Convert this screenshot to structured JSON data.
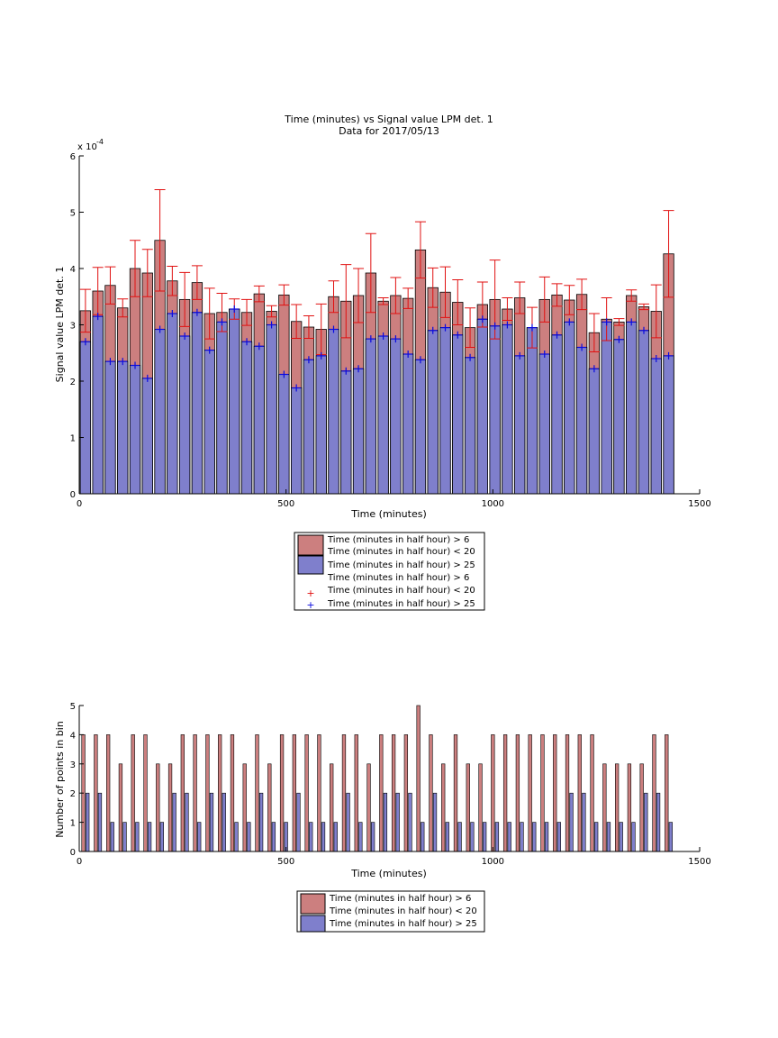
{
  "chart_data": [
    {
      "type": "bar",
      "title": "Time (minutes) vs Signal value LPM det. 1",
      "subtitle": "Data for 2017/05/13",
      "xlabel": "Time (minutes)",
      "ylabel": "Signal value LPM det. 1",
      "y_exponent_label": "x 10",
      "y_exponent_power": "-4",
      "xlim": [
        0,
        1500
      ],
      "ylim": [
        0,
        6
      ],
      "xticks": [
        "0",
        "500",
        "1000",
        "1500"
      ],
      "yticks": [
        "0",
        "1",
        "2",
        "3",
        "4",
        "5",
        "6"
      ],
      "bar_width": 25,
      "x": [
        15,
        45,
        75,
        105,
        135,
        165,
        195,
        225,
        255,
        285,
        315,
        345,
        375,
        405,
        435,
        465,
        495,
        525,
        555,
        585,
        615,
        645,
        675,
        705,
        735,
        765,
        795,
        825,
        855,
        885,
        915,
        945,
        975,
        1005,
        1035,
        1065,
        1095,
        1125,
        1155,
        1185,
        1215,
        1245,
        1275,
        1305,
        1335,
        1365,
        1395,
        1425
      ],
      "series": [
        {
          "name": "Time (minutes in half hour) > 6\nTime (minutes in half hour) < 20",
          "color": "#cc7f7f",
          "err_color": "#e01010",
          "values": [
            3.25,
            3.6,
            3.7,
            3.3,
            4.0,
            3.92,
            4.5,
            3.78,
            3.45,
            3.75,
            3.2,
            3.22,
            3.28,
            3.22,
            3.55,
            3.24,
            3.53,
            3.06,
            2.96,
            2.92,
            3.5,
            3.42,
            3.52,
            3.92,
            3.42,
            3.52,
            3.47,
            4.33,
            3.66,
            3.58,
            3.4,
            2.95,
            3.36,
            3.45,
            3.28,
            3.48,
            2.95,
            3.45,
            3.53,
            3.44,
            3.54,
            2.86,
            3.1,
            3.05,
            3.52,
            3.32,
            3.24,
            4.26
          ],
          "err": [
            0.38,
            0.42,
            0.33,
            0.16,
            0.5,
            0.42,
            0.9,
            0.26,
            0.48,
            0.3,
            0.45,
            0.34,
            0.18,
            0.23,
            0.14,
            0.1,
            0.18,
            0.3,
            0.2,
            0.45,
            0.28,
            0.65,
            0.48,
            0.7,
            0.06,
            0.32,
            0.18,
            0.5,
            0.35,
            0.45,
            0.4,
            0.35,
            0.4,
            0.7,
            0.2,
            0.28,
            0.36,
            0.4,
            0.2,
            0.26,
            0.27,
            0.34,
            0.38,
            0.06,
            0.1,
            0.05,
            0.47,
            0.77
          ]
        },
        {
          "name": "Time (minutes in half hour) > 25",
          "color": "#7f7fcc",
          "err_color": "#0a0ae0",
          "values": [
            2.7,
            3.15,
            2.35,
            2.35,
            2.28,
            2.05,
            2.92,
            3.2,
            2.8,
            3.22,
            2.55,
            3.05,
            3.28,
            2.7,
            2.62,
            3.0,
            2.12,
            1.88,
            2.38,
            2.45,
            2.92,
            2.18,
            2.22,
            2.75,
            2.8,
            2.75,
            2.48,
            2.38,
            2.9,
            2.95,
            2.82,
            2.42,
            3.1,
            2.98,
            3.0,
            2.45,
            2.95,
            2.48,
            2.82,
            3.05,
            2.6,
            2.22,
            3.05,
            2.74,
            3.05,
            2.9,
            2.4,
            2.45
          ]
        }
      ],
      "err_series": [
        {
          "name": "Time (minutes in half hour) > 6\nTime (minutes in half hour) < 20",
          "color": "#e01010"
        },
        {
          "name": "Time (minutes in half hour) > 25",
          "color": "#0a0ae0"
        }
      ],
      "legend_position": "below"
    },
    {
      "type": "bar",
      "xlabel": "Time (minutes)",
      "ylabel": "Number of points in bin",
      "xlim": [
        0,
        1500
      ],
      "ylim": [
        0,
        5
      ],
      "xticks": [
        "0",
        "500",
        "1000",
        "1500"
      ],
      "yticks": [
        "0",
        "1",
        "2",
        "3",
        "4",
        "5"
      ],
      "bar_width": 8,
      "x_red": [
        10,
        40,
        70,
        100,
        130,
        160,
        190,
        220,
        250,
        280,
        310,
        340,
        370,
        400,
        430,
        460,
        490,
        520,
        550,
        580,
        610,
        640,
        670,
        700,
        730,
        760,
        790,
        820,
        850,
        880,
        910,
        940,
        970,
        1000,
        1030,
        1060,
        1090,
        1120,
        1150,
        1180,
        1210,
        1240,
        1270,
        1300,
        1330,
        1360,
        1390,
        1420
      ],
      "x_blue": [
        20,
        50,
        80,
        110,
        140,
        170,
        200,
        230,
        260,
        290,
        320,
        350,
        380,
        410,
        440,
        470,
        500,
        530,
        560,
        590,
        620,
        650,
        680,
        710,
        740,
        770,
        800,
        830,
        860,
        890,
        920,
        950,
        980,
        1010,
        1040,
        1070,
        1100,
        1130,
        1160,
        1190,
        1220,
        1250,
        1280,
        1310,
        1340,
        1370,
        1400,
        1430
      ],
      "series": [
        {
          "name": "Time (minutes in half hour) > 6\nTime (minutes in half hour) < 20",
          "color": "#cc7f7f",
          "values": [
            4,
            4,
            4,
            3,
            4,
            4,
            3,
            3,
            4,
            4,
            4,
            4,
            4,
            3,
            4,
            3,
            4,
            4,
            4,
            4,
            3,
            4,
            4,
            3,
            4,
            4,
            4,
            5,
            4,
            3,
            4,
            3,
            3,
            4,
            4,
            4,
            4,
            4,
            4,
            4,
            4,
            4,
            3,
            3,
            3,
            3,
            4,
            4
          ]
        },
        {
          "name": "Time (minutes in half hour) > 25",
          "color": "#7f7fcc",
          "values": [
            2,
            2,
            1,
            1,
            1,
            1,
            1,
            2,
            2,
            1,
            2,
            2,
            1,
            1,
            2,
            1,
            1,
            2,
            1,
            1,
            1,
            2,
            1,
            1,
            2,
            2,
            2,
            1,
            2,
            1,
            1,
            1,
            1,
            1,
            1,
            1,
            1,
            1,
            1,
            2,
            2,
            1,
            1,
            1,
            1,
            2,
            2,
            1
          ]
        }
      ],
      "legend_position": "below"
    }
  ]
}
